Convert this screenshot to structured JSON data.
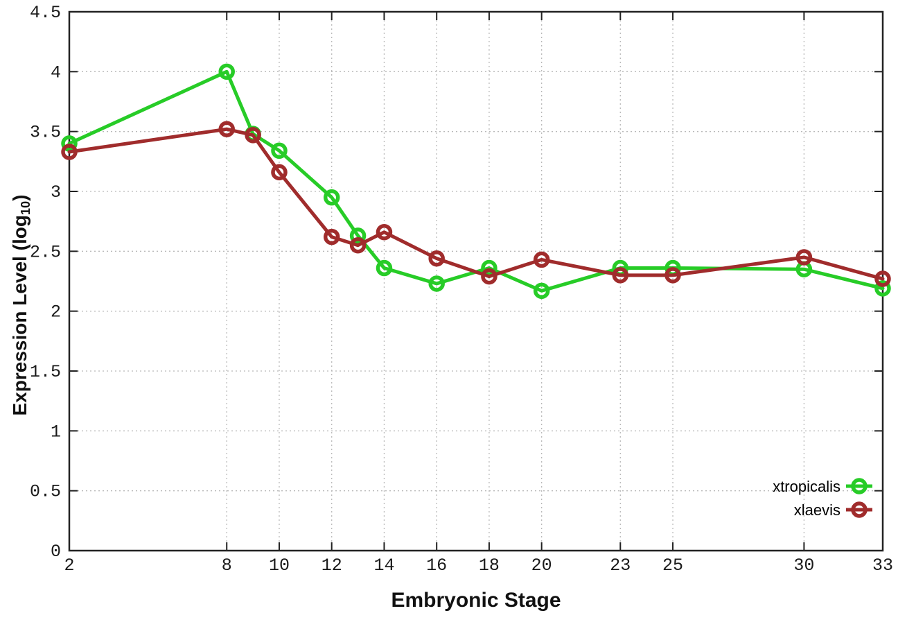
{
  "figure": {
    "background": "#ffffff",
    "border_color": "#222222",
    "grid_color": "#b9b9b9",
    "tick_color": "#222222",
    "tick_label_color": "#1a1a1a",
    "axis_title_color": "#111111"
  },
  "chart_data": {
    "type": "line",
    "title": "",
    "xlabel": "Embryonic Stage",
    "ylabel": {
      "full": "Expression Level (log10)",
      "prefix": "Expression Level (log",
      "sub": "10",
      "suffix": ")"
    },
    "xlim": [
      2,
      33
    ],
    "ylim": [
      0,
      4.5
    ],
    "grid": true,
    "grid_style": "dotted",
    "legend_position": "inside-right-lower",
    "x": [
      2,
      8,
      9,
      10,
      12,
      13,
      14,
      16,
      18,
      20,
      23,
      25,
      30,
      33
    ],
    "x_tick_values": [
      2,
      8,
      10,
      12,
      14,
      16,
      18,
      20,
      23,
      25,
      30,
      33
    ],
    "x_tick_labels": [
      "2",
      "8",
      "10",
      "12",
      "14",
      "16",
      "18",
      "20",
      "23",
      "25",
      "30",
      "33"
    ],
    "y_tick_values": [
      0,
      0.5,
      1,
      1.5,
      2,
      2.5,
      3,
      3.5,
      4,
      4.5
    ],
    "y_tick_labels": [
      "0",
      "0.5",
      "1",
      "1.5",
      "2",
      "2.5",
      "3",
      "3.5",
      "4",
      "4.5"
    ],
    "series": [
      {
        "name": "xtropicalis",
        "color": "#27cc27",
        "marker": "open-circle",
        "values": [
          3.4,
          4.0,
          3.48,
          3.34,
          2.95,
          2.63,
          2.36,
          2.23,
          2.36,
          2.17,
          2.36,
          2.36,
          2.35,
          2.19
        ]
      },
      {
        "name": "xlaevis",
        "color": "#a02c2c",
        "marker": "open-circle",
        "values": [
          3.33,
          3.52,
          3.47,
          3.16,
          2.62,
          2.55,
          2.66,
          2.44,
          2.29,
          2.43,
          2.3,
          2.3,
          2.45,
          2.27
        ]
      }
    ]
  }
}
